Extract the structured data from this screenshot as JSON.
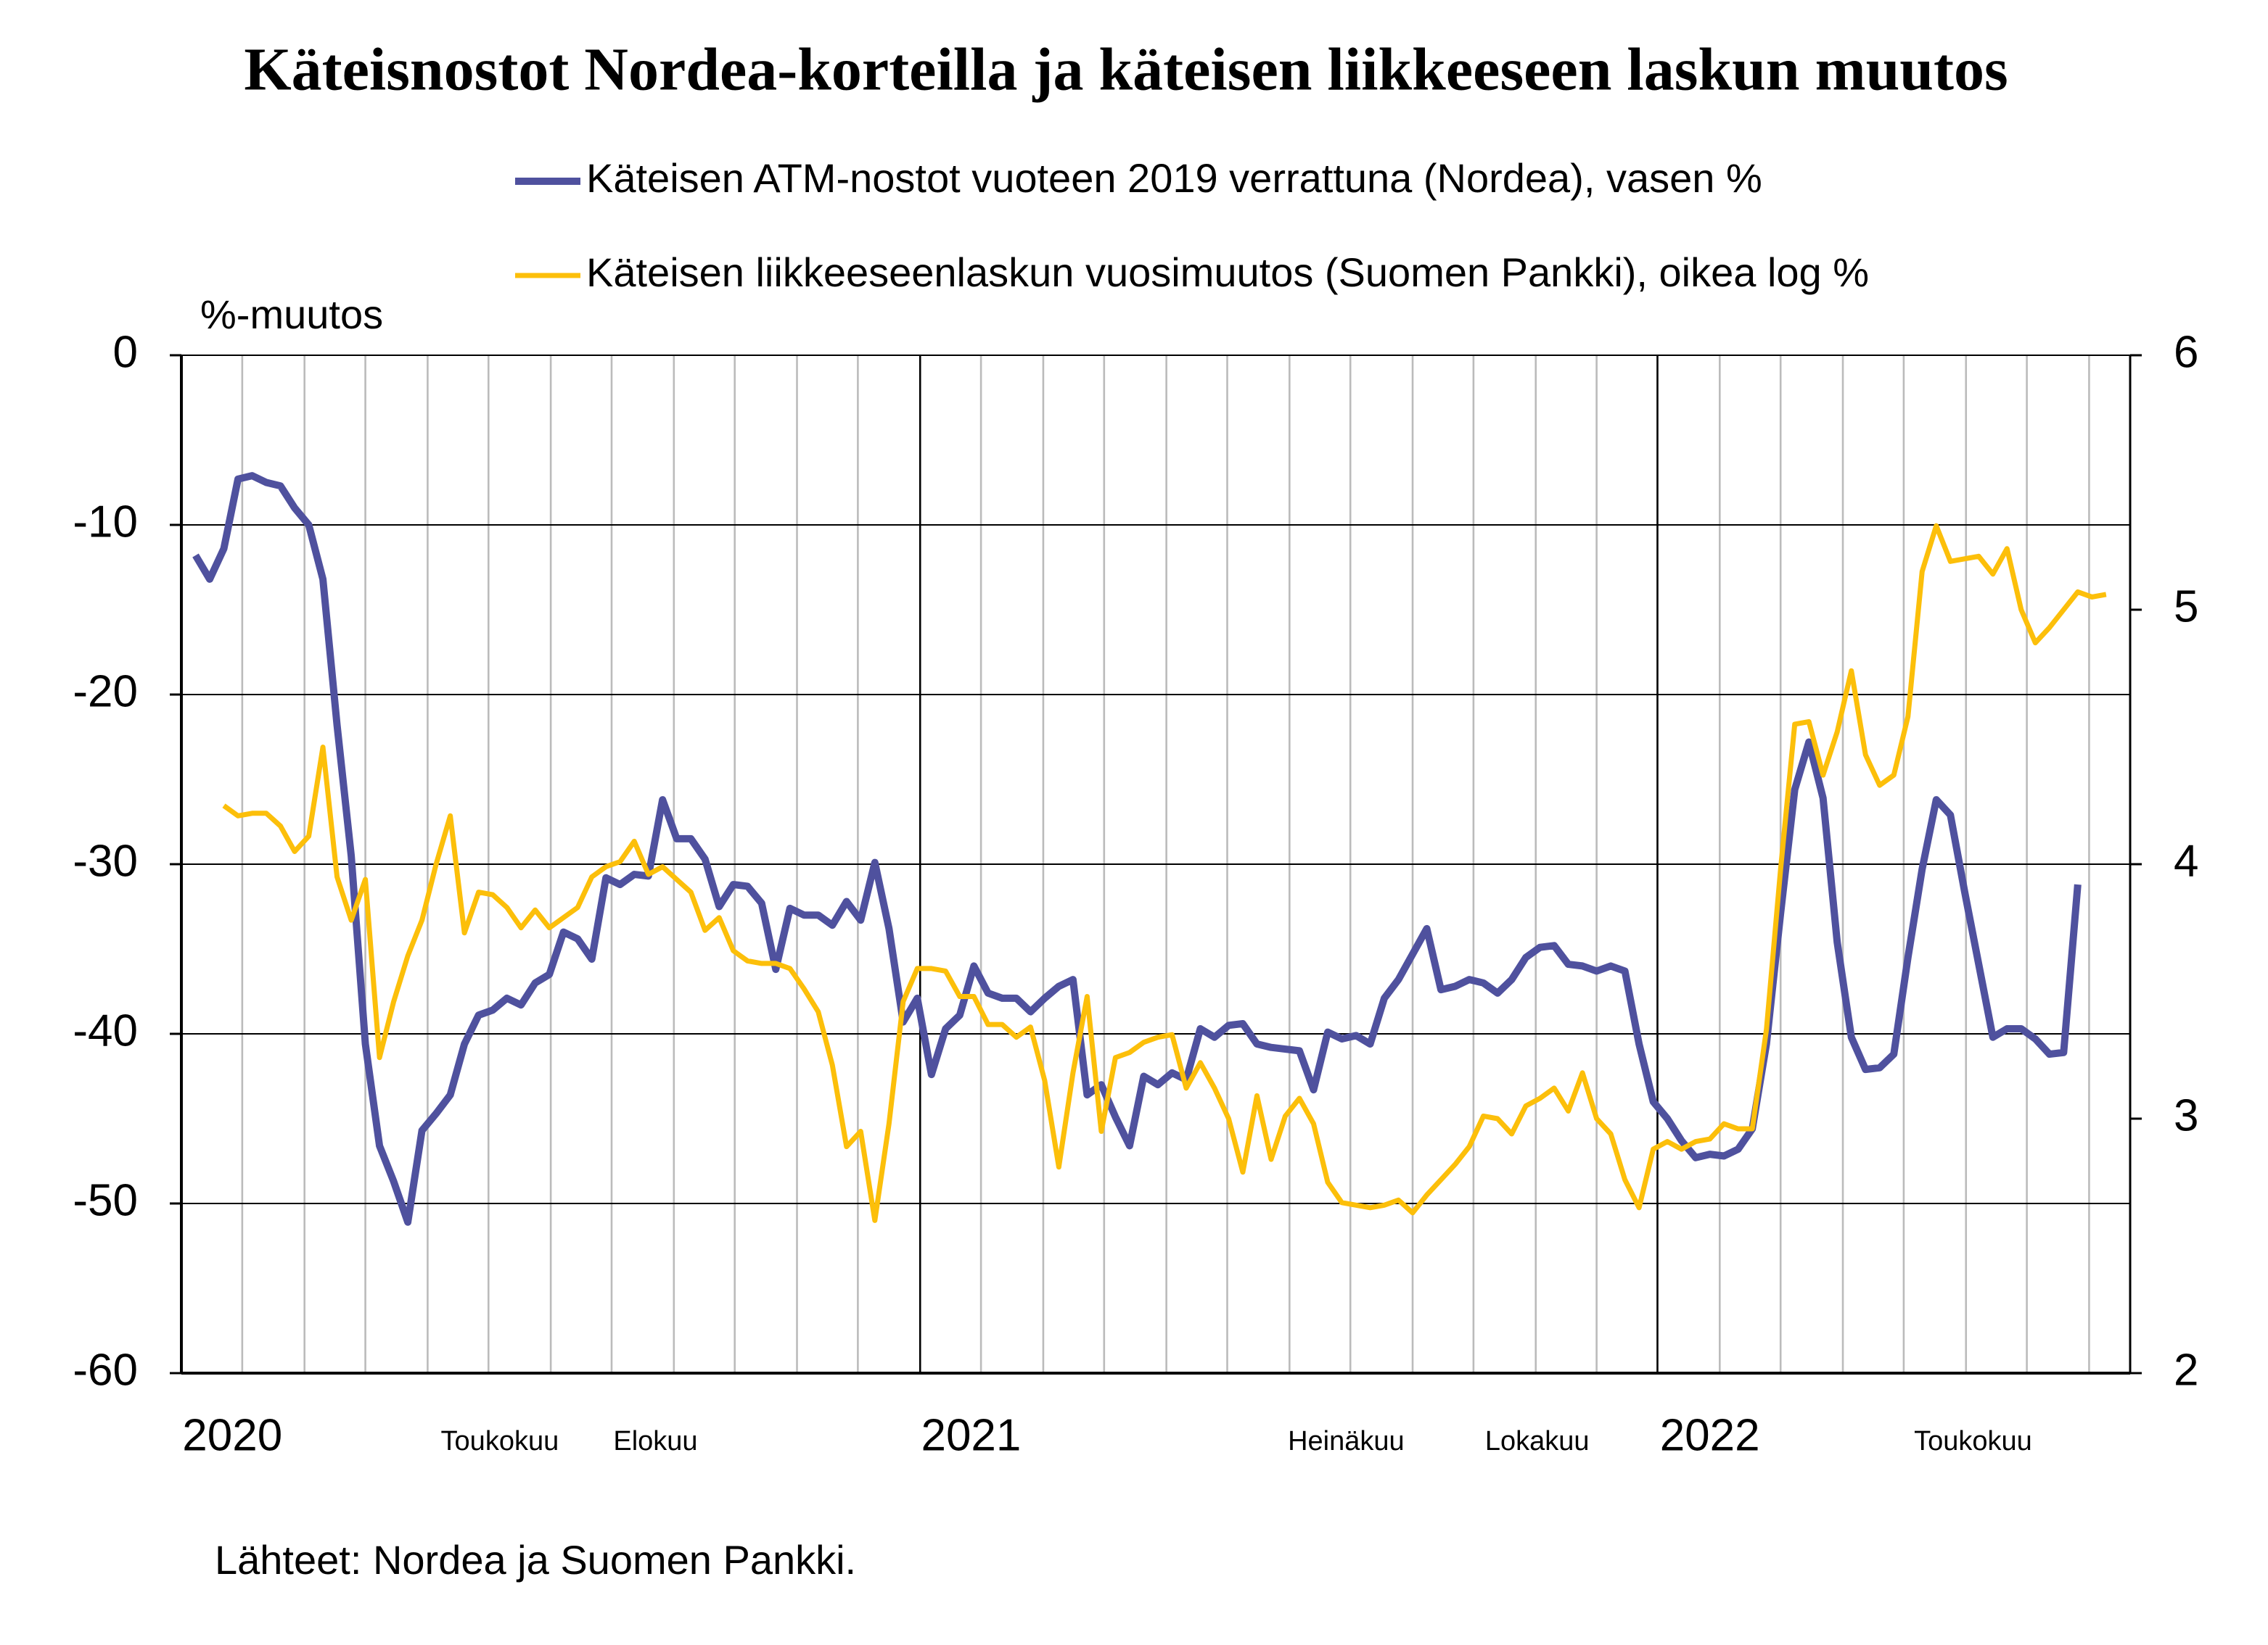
{
  "chart_data": {
    "type": "line",
    "title": "Käteisnostot Nordea-korteilla ja käteisen liikkeeseen laskun muutos",
    "ylabel": "%-muutos",
    "source": "Lähteet: Nordea ja Suomen Pankki.",
    "x": [
      1,
      2,
      3,
      4,
      5,
      6,
      7,
      8,
      9,
      10,
      11,
      12,
      13,
      14,
      15,
      16,
      17,
      18,
      19,
      20,
      21,
      22,
      23,
      24,
      25,
      26,
      27,
      28,
      29,
      30,
      31,
      32,
      33,
      34,
      35,
      36,
      37,
      38,
      39,
      40,
      41,
      42,
      43,
      44,
      45,
      46,
      47,
      48,
      49,
      50,
      51,
      52,
      53,
      54,
      55,
      56,
      57,
      58,
      59,
      60,
      61,
      62,
      63,
      64,
      65,
      66,
      67,
      68,
      69,
      70,
      71,
      72,
      73,
      74,
      75,
      76,
      77,
      78,
      79,
      80,
      81,
      82,
      83,
      84,
      85,
      86,
      87,
      88,
      89,
      90,
      91,
      92,
      93,
      94,
      95,
      96,
      97,
      98,
      99,
      100,
      101,
      102,
      103,
      104,
      105,
      106,
      107,
      108,
      109,
      110,
      111,
      112,
      113,
      114,
      115,
      116,
      117,
      118,
      119,
      120,
      121,
      122,
      123,
      124,
      125,
      126,
      127,
      128,
      129,
      130,
      131,
      132,
      133,
      134,
      135,
      136
    ],
    "xlim": [
      0,
      137.7
    ],
    "xticks": [
      4.3,
      8.7,
      13.0,
      17.4,
      21.7,
      26.1,
      30.4,
      34.8,
      39.1,
      43.5,
      47.8,
      52.2,
      56.5,
      60.9,
      65.2,
      69.6,
      73.9,
      78.3,
      82.6,
      87.0,
      91.3,
      95.7,
      100.0,
      104.3,
      108.7,
      113.0,
      117.4,
      121.7,
      126.1,
      130.4,
      134.8
    ],
    "xlabels": [
      {
        "value": 3.6,
        "label": "2020"
      },
      {
        "value": 22.5,
        "label": "Toukokuu"
      },
      {
        "value": 33.5,
        "label": "Elokuu"
      },
      {
        "value": 55.8,
        "label": "2021"
      },
      {
        "value": 82.3,
        "label": "Heinäkuu"
      },
      {
        "value": 95.8,
        "label": "Lokakuu"
      },
      {
        "value": 108,
        "label": "2022"
      },
      {
        "value": 126.6,
        "label": "Toukokuu"
      }
    ],
    "ylim": [
      -60,
      0
    ],
    "yticks": [
      -60,
      -50,
      -40,
      -30,
      -20,
      -10,
      0
    ],
    "y2lim": [
      2,
      6
    ],
    "y2ticks": [
      2,
      3,
      4,
      5,
      6
    ],
    "grid": true,
    "series": [
      {
        "name": "Käteisen ATM-nostot vuoteen 2019 verrattuna (Nordea), vasen %",
        "color": "#4f519e",
        "axis": "y",
        "values": [
          -11.8,
          -13.2,
          -11.4,
          -7.3,
          -7.1,
          -7.5,
          -7.7,
          -9.0,
          -10,
          -13.2,
          -21.8,
          -29.5,
          -40.6,
          -46.6,
          -48.7,
          -51.1,
          -45.7,
          -44.7,
          -43.6,
          -40.6,
          -38.9,
          -38.6,
          -37.9,
          -38.3,
          -37,
          -36.5,
          -34,
          -34.4,
          -35.6,
          -30.8,
          -31.2,
          -30.6,
          -30.7,
          -26.2,
          -28.5,
          -28.5,
          -29.7,
          -32.5,
          -31.2,
          -31.3,
          -32.3,
          -36.2,
          -32.6,
          -33,
          -33,
          -33.6,
          -32.2,
          -33.3,
          -29.9,
          -33.8,
          -39.3,
          -37.9,
          -42.4,
          -39.7,
          -38.9,
          -36,
          -37.6,
          -37.9,
          -37.9,
          -38.7,
          -37.9,
          -37.2,
          -36.8,
          -43.6,
          -43,
          -44.9,
          -46.6,
          -42.5,
          -43,
          -42.3,
          -42.7,
          -39.7,
          -40.2,
          -39.5,
          -39.4,
          -40.6,
          -40.8,
          -40.9,
          -41,
          -43.3,
          -39.9,
          -40.3,
          -40.1,
          -40.6,
          -37.9,
          -36.8,
          -35.3,
          -33.8,
          -37.4,
          -37.2,
          -36.8,
          -37,
          -37.6,
          -36.8,
          -35.5,
          -34.9,
          -34.8,
          -35.9,
          -36,
          -36.3,
          -36,
          -36.3,
          -40.6,
          -44,
          -45,
          -46.3,
          -47.3,
          -47.1,
          -47.2,
          -46.8,
          -45.6,
          -40.6,
          -32.9,
          -25.6,
          -22.8,
          -26.1,
          -34.6,
          -40.2,
          -42.1,
          -42,
          -41.2,
          -35.5,
          -30.3,
          -26.2,
          -27.1,
          -31.6,
          -35.9,
          -40.2,
          -39.7,
          -39.7,
          -40.3,
          -41.2,
          -41.1,
          -31.2,
          null,
          null
        ]
      },
      {
        "name": "Käteisen liikkeeseenlaskun vuosimuutos (Suomen Pankki), oikea log %",
        "color": "#fcbf0a",
        "axis": "y2",
        "values": [
          null,
          null,
          4.23,
          4.19,
          4.2,
          4.2,
          4.15,
          4.05,
          4.11,
          4.46,
          3.95,
          3.78,
          3.94,
          3.24,
          3.46,
          3.64,
          3.78,
          4.0,
          4.19,
          3.73,
          3.89,
          3.88,
          3.83,
          3.75,
          3.82,
          3.75,
          3.79,
          3.83,
          3.95,
          3.99,
          4.01,
          4.09,
          3.96,
          3.99,
          3.94,
          3.89,
          3.74,
          3.79,
          3.66,
          3.62,
          3.61,
          3.61,
          3.59,
          3.51,
          3.42,
          3.21,
          2.89,
          2.95,
          2.6,
          2.98,
          3.46,
          3.59,
          3.59,
          3.58,
          3.48,
          3.48,
          3.37,
          3.37,
          3.32,
          3.36,
          3.15,
          2.81,
          3.18,
          3.48,
          2.95,
          3.24,
          3.26,
          3.3,
          3.32,
          3.33,
          3.12,
          3.22,
          3.12,
          3.0,
          2.79,
          3.09,
          2.84,
          3.01,
          3.08,
          2.98,
          2.75,
          2.67,
          2.66,
          2.65,
          2.66,
          2.68,
          2.63,
          2.7,
          2.76,
          2.82,
          2.89,
          3.01,
          3.0,
          2.94,
          3.05,
          3.08,
          3.12,
          3.03,
          3.18,
          3.0,
          2.94,
          2.76,
          2.65,
          2.88,
          2.91,
          2.88,
          2.91,
          2.92,
          2.98,
          2.96,
          2.96,
          3.35,
          3.98,
          4.55,
          4.56,
          4.35,
          4.52,
          4.76,
          4.43,
          4.31,
          4.35,
          4.58,
          5.15,
          5.33,
          5.19,
          5.2,
          5.21,
          5.14,
          5.24,
          5.0,
          4.87,
          4.93,
          5.0,
          5.07,
          5.05,
          5.06
        ]
      }
    ]
  }
}
